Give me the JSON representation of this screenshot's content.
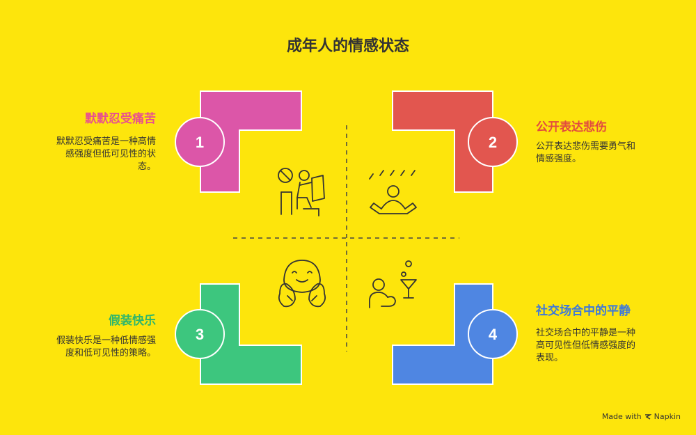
{
  "title": "成年人的情感状态",
  "colors": {
    "background": "#FDE50C",
    "q1": "#DC56A8",
    "q2": "#E2564F",
    "q3": "#3DC67E",
    "q4": "#4F86E2",
    "q1_text": "#E8508F",
    "q2_text": "#E24B3F",
    "q3_text": "#2EB66C",
    "q4_text": "#3C78DB"
  },
  "quadrants": [
    {
      "number": "1",
      "heading": "默默忍受痛苦",
      "description": [
        "默默忍受痛苦是一种高情",
        "感强度但低可见性的状",
        "态。"
      ],
      "icon": "person-reading-icon"
    },
    {
      "number": "2",
      "heading": "公开表达悲伤",
      "description": [
        "公开表达悲伤需要勇气和",
        "情感强度。"
      ],
      "icon": "person-in-rain-icon"
    },
    {
      "number": "3",
      "heading": "假装快乐",
      "description": [
        "假装快乐是一种低情感强",
        "度和低可见性的策略。"
      ],
      "icon": "smiling-face-icon"
    },
    {
      "number": "4",
      "heading": "社交场合中的平静",
      "description": [
        "社交场合中的平静是一种",
        "高可见性但低情感强度的",
        "表现。"
      ],
      "icon": "person-with-cocktail-icon"
    }
  ],
  "footer": {
    "made_with": "Made with",
    "brand": "Napkin"
  }
}
